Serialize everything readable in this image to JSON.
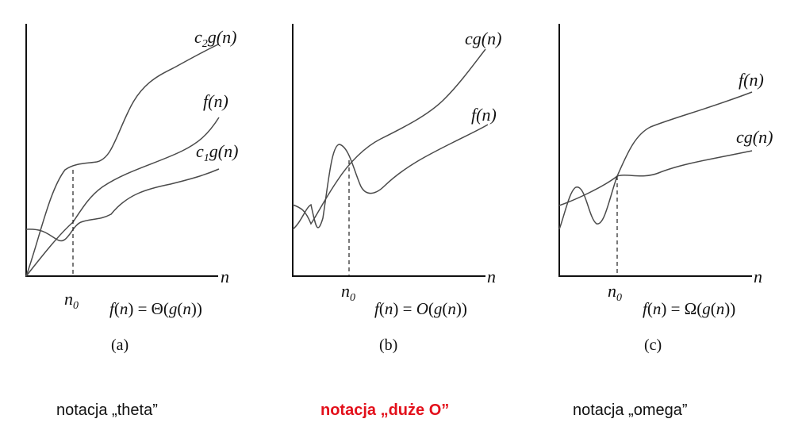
{
  "panels": [
    {
      "curve_labels": [
        "c2g(n)",
        "f(n)",
        "c1g(n)"
      ],
      "x_axis_label": "n",
      "threshold_label": "n0",
      "formula": "f(n) = Θ(g(n))",
      "sublabel": "(a)"
    },
    {
      "curve_labels": [
        "cg(n)",
        "f(n)"
      ],
      "x_axis_label": "n",
      "threshold_label": "n0",
      "formula": "f(n) = O(g(n))",
      "sublabel": "(b)"
    },
    {
      "curve_labels": [
        "f(n)",
        "cg(n)"
      ],
      "x_axis_label": "n",
      "threshold_label": "n0",
      "formula": "f(n) = Ω(g(n))",
      "sublabel": "(c)"
    }
  ],
  "captions": [
    {
      "text": "notacja „theta”",
      "color": "#111111",
      "bold": false
    },
    {
      "text": "notacja „duże O”",
      "color": "#e3101b",
      "bold": true
    },
    {
      "text": "notacja „omega”",
      "color": "#111111",
      "bold": false
    }
  ]
}
